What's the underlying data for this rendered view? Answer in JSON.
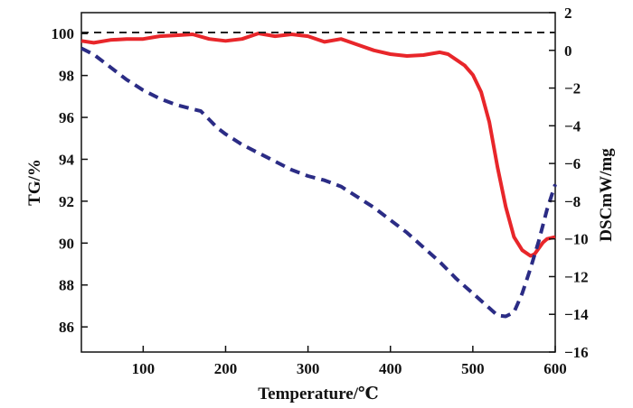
{
  "chart_data": {
    "type": "line",
    "xlabel": "Temperature/℃",
    "ylabel_left": "TG/%",
    "ylabel_right": "DSCmW/mg",
    "xlim": [
      25,
      600
    ],
    "ylim_left": [
      84.8,
      101
    ],
    "ylim_right": [
      -16,
      2
    ],
    "x_ticks": [
      100,
      200,
      300,
      400,
      500,
      600
    ],
    "y_left_ticks": [
      86,
      88,
      90,
      92,
      94,
      96,
      98,
      100
    ],
    "y_right_ticks": [
      2,
      0,
      -2,
      -4,
      -6,
      -8,
      -10,
      -12,
      -14,
      -16
    ],
    "grid": false,
    "series": [
      {
        "axis": "right",
        "color": "#e8262a",
        "style": "solid",
        "x": [
          25,
          40,
          60,
          80,
          100,
          120,
          140,
          160,
          180,
          200,
          220,
          240,
          260,
          280,
          300,
          320,
          340,
          360,
          380,
          400,
          420,
          440,
          460,
          470,
          480,
          490,
          500,
          510,
          520,
          530,
          540,
          550,
          560,
          570,
          575,
          580,
          585,
          590,
          600
        ],
        "values": [
          0.5,
          0.4,
          0.55,
          0.6,
          0.6,
          0.75,
          0.8,
          0.85,
          0.6,
          0.5,
          0.6,
          0.9,
          0.75,
          0.85,
          0.75,
          0.45,
          0.6,
          0.3,
          0.0,
          -0.2,
          -0.3,
          -0.25,
          -0.1,
          -0.2,
          -0.5,
          -0.8,
          -1.3,
          -2.2,
          -3.8,
          -6.2,
          -8.3,
          -9.9,
          -10.6,
          -10.9,
          -10.8,
          -10.5,
          -10.2,
          -10.0,
          -9.9
        ]
      },
      {
        "axis": "left",
        "color": "#2b2c85",
        "style": "dashed",
        "x": [
          25,
          40,
          60,
          80,
          100,
          120,
          140,
          160,
          170,
          180,
          190,
          200,
          220,
          240,
          260,
          280,
          300,
          320,
          340,
          360,
          380,
          400,
          420,
          440,
          460,
          480,
          500,
          520,
          530,
          540,
          550,
          560,
          570,
          580,
          590,
          600
        ],
        "values": [
          99.3,
          99.0,
          98.4,
          97.8,
          97.3,
          96.9,
          96.6,
          96.4,
          96.3,
          95.9,
          95.5,
          95.2,
          94.7,
          94.3,
          93.9,
          93.5,
          93.2,
          93.0,
          92.7,
          92.2,
          91.7,
          91.1,
          90.5,
          89.8,
          89.1,
          88.3,
          87.6,
          86.9,
          86.55,
          86.5,
          86.7,
          87.6,
          88.8,
          90.1,
          91.6,
          92.8
        ]
      },
      {
        "axis": "left",
        "color": "#222222",
        "style": "dashed",
        "x": [
          25,
          600
        ],
        "values": [
          100.05,
          100.05
        ]
      }
    ]
  }
}
